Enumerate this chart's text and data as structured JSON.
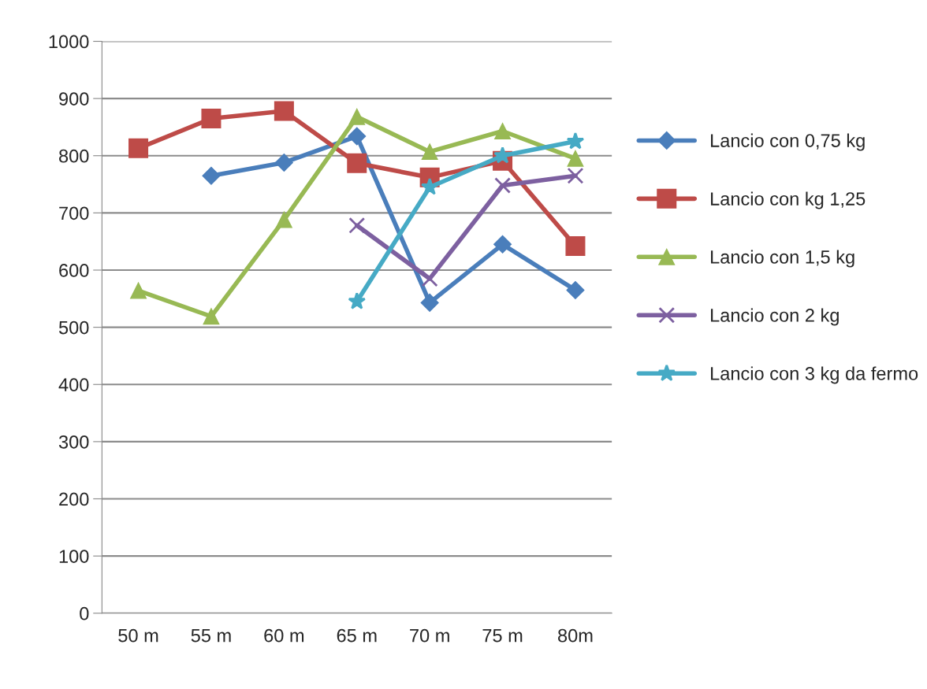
{
  "chart_data": {
    "type": "line",
    "categories": [
      "50 m",
      "55 m",
      "60 m",
      "65 m",
      "70 m",
      "75 m",
      "80m"
    ],
    "ylim": [
      0,
      1000
    ],
    "yticks": [
      0,
      100,
      200,
      300,
      400,
      500,
      600,
      700,
      800,
      900,
      1000
    ],
    "grid": "y",
    "legend": "right",
    "series": [
      {
        "name": "Lancio con 0,75 kg",
        "color": "#4a7ebb",
        "marker": "diamond",
        "values": [
          null,
          765,
          788,
          834,
          543,
          645,
          565
        ]
      },
      {
        "name": "Lancio con kg 1,25",
        "color": "#be4b48",
        "marker": "square",
        "values": [
          813,
          865,
          878,
          787,
          762,
          791,
          642
        ]
      },
      {
        "name": "Lancio con 1,5 kg",
        "color": "#98b954",
        "marker": "triangle",
        "values": [
          564,
          519,
          688,
          868,
          807,
          843,
          795
        ]
      },
      {
        "name": "Lancio con 2 kg",
        "color": "#7d60a0",
        "marker": "cross",
        "values": [
          null,
          null,
          null,
          678,
          585,
          748,
          765
        ]
      },
      {
        "name": "Lancio con 3 kg da fermo",
        "color": "#46aac5",
        "marker": "star",
        "values": [
          null,
          null,
          null,
          545,
          745,
          800,
          825
        ]
      }
    ]
  }
}
